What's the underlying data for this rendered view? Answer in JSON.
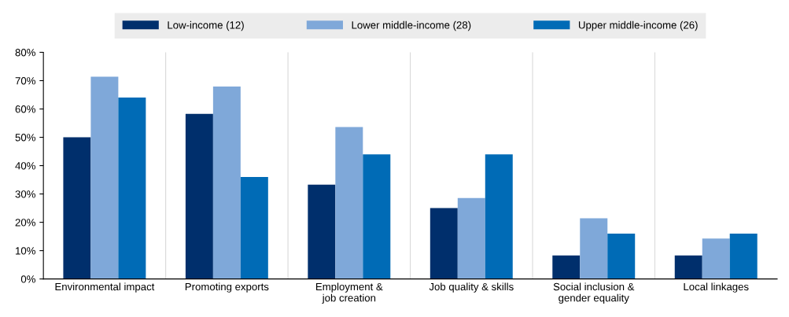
{
  "chart_data": {
    "type": "bar",
    "categories": [
      "Environmental impact",
      "Promoting exports",
      "Employment &\njob creation",
      "Job quality & skills",
      "Social inclusion &\ngender equality",
      "Local linkages"
    ],
    "series": [
      {
        "name": "Low-income (12)",
        "color": "#002f6c",
        "values": [
          50,
          58.3,
          33.3,
          25,
          8.3,
          8.3
        ]
      },
      {
        "name": "Lower middle-income (28)",
        "color": "#7fa8d9",
        "values": [
          71.4,
          67.9,
          53.6,
          28.6,
          21.4,
          14.3
        ]
      },
      {
        "name": "Upper middle-income (26)",
        "color": "#006bb6",
        "values": [
          64,
          36,
          44,
          44,
          16,
          16
        ]
      }
    ],
    "ylim": [
      0,
      80
    ],
    "yticks": [
      {
        "value": 0,
        "label": "0%"
      },
      {
        "value": 10,
        "label": "10%"
      },
      {
        "value": 20,
        "label": "20%"
      },
      {
        "value": 30,
        "label": "30%"
      },
      {
        "value": 40,
        "label": "40%"
      },
      {
        "value": 50,
        "label": "50%"
      },
      {
        "value": 60,
        "label": "60%"
      },
      {
        "value": 70,
        "label": "70%"
      },
      {
        "value": 80,
        "label": "80%"
      }
    ],
    "grid": "x",
    "legend": "top"
  }
}
